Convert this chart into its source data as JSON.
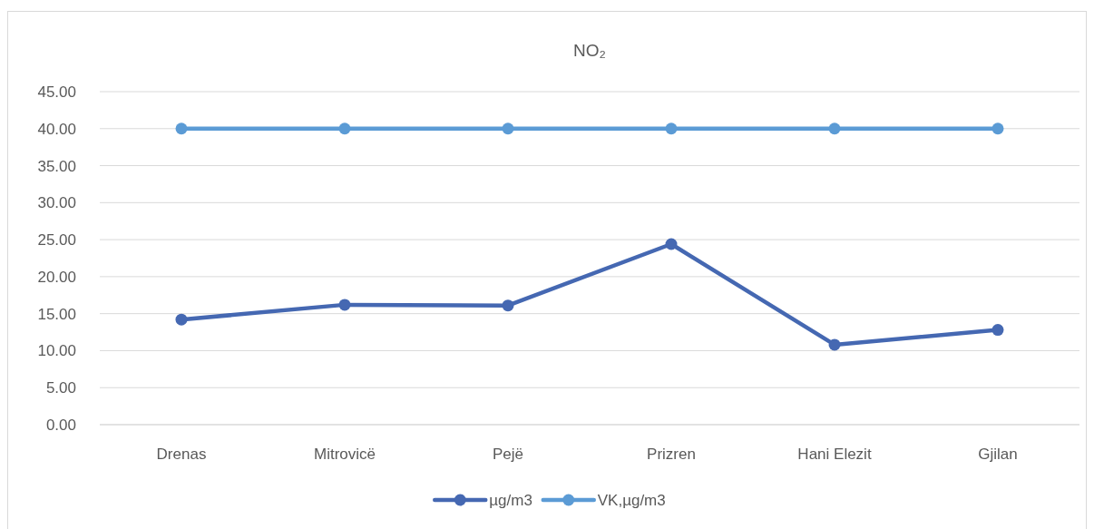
{
  "chart_data": {
    "type": "line",
    "title": "NO₂",
    "categories": [
      "Drenas",
      "Mitrovicë",
      "Pejë",
      "Prizren",
      "Hani Elezit",
      "Gjilan"
    ],
    "series": [
      {
        "name": "µg/m3",
        "color": "#4568b2",
        "values": [
          14.2,
          16.2,
          16.1,
          24.4,
          10.8,
          12.8
        ]
      },
      {
        "name": "VK,µg/m3",
        "color": "#5b9bd5",
        "values": [
          40,
          40,
          40,
          40,
          40,
          40
        ]
      }
    ],
    "ylim": [
      0,
      45
    ],
    "yticks": [
      {
        "value": 0,
        "label": "0.00"
      },
      {
        "value": 5,
        "label": "5.00"
      },
      {
        "value": 10,
        "label": "10.00"
      },
      {
        "value": 15,
        "label": "15.00"
      },
      {
        "value": 20,
        "label": "20.00"
      },
      {
        "value": 25,
        "label": "25.00"
      },
      {
        "value": 30,
        "label": "30.00"
      },
      {
        "value": 35,
        "label": "35.00"
      },
      {
        "value": 40,
        "label": "40.00"
      },
      {
        "value": 45,
        "label": "45.00"
      }
    ],
    "grid": "y",
    "legend": "bottom",
    "marker": "circle",
    "line_style": "solid"
  }
}
